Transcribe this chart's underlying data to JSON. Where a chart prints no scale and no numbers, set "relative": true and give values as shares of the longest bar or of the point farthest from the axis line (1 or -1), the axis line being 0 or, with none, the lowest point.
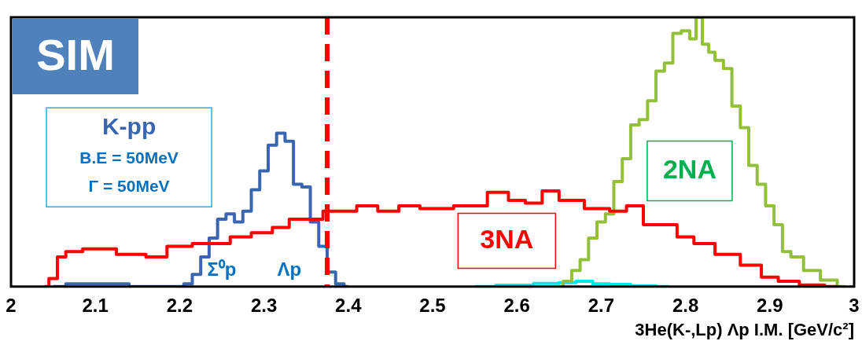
{
  "chart_data": {
    "type": "step",
    "relative": true,
    "xlabel": "3He(K-,Lp) Λp I.M. [GeV/c²]",
    "xlim": [
      2,
      3
    ],
    "xticks": [
      2,
      2.1,
      2.2,
      2.3,
      2.4,
      2.5,
      2.6,
      2.7,
      2.8,
      2.9,
      3
    ],
    "grid": false,
    "legend": false,
    "marker": "none",
    "annotations": [
      "SIM",
      "B.E = 50MeV",
      "Γ = 50MeV",
      "Σ⁰p",
      "Λp"
    ],
    "ref_lines": [
      {
        "axis": "x",
        "value": 2.375,
        "color": "#ff0000",
        "line_style": "dashed"
      }
    ],
    "series": [
      {
        "name": "3NA",
        "color": "#ff0000",
        "x": [
          2.04,
          2.05,
          2.06,
          2.07,
          2.1,
          2.15,
          2.17,
          2.2,
          2.23,
          2.25,
          2.27,
          2.3,
          2.32,
          2.34,
          2.36,
          2.38,
          2.4,
          2.42,
          2.45,
          2.47,
          2.5,
          2.55,
          2.58,
          2.6,
          2.62,
          2.64,
          2.66,
          2.7,
          2.72,
          2.74,
          2.76,
          2.78,
          2.8,
          2.82,
          2.85,
          2.88,
          2.9,
          2.92,
          2.95,
          2.98
        ],
        "values": [
          0,
          0.03,
          0.11,
          0.13,
          0.14,
          0.12,
          0.11,
          0.15,
          0.16,
          0.16,
          0.185,
          0.2,
          0.22,
          0.25,
          0.25,
          0.28,
          0.28,
          0.3,
          0.28,
          0.3,
          0.29,
          0.3,
          0.35,
          0.32,
          0.31,
          0.355,
          0.32,
          0.29,
          0.28,
          0.3,
          0.23,
          0.23,
          0.185,
          0.16,
          0.12,
          0.08,
          0.035,
          0.02,
          0.006,
          0
        ]
      },
      {
        "name": "K-pp",
        "color": "#3a66b0",
        "x": [
          2.05,
          2.08,
          2.12,
          2.16,
          2.2,
          2.21,
          2.22,
          2.23,
          2.24,
          2.25,
          2.26,
          2.27,
          2.28,
          2.29,
          2.3,
          2.31,
          2.32,
          2.33,
          2.34,
          2.35,
          2.36,
          2.37,
          2.38,
          2.39,
          2.4
        ],
        "values": [
          0,
          0.01,
          0.01,
          0,
          0,
          0.01,
          0.045,
          0.11,
          0.18,
          0.25,
          0.27,
          0.24,
          0.28,
          0.36,
          0.43,
          0.525,
          0.57,
          0.54,
          0.38,
          0.37,
          0.24,
          0.15,
          0.054,
          0.01,
          0
        ]
      },
      {
        "name": "2NA",
        "color": "#92c03c",
        "x": [
          2.65,
          2.66,
          2.67,
          2.68,
          2.69,
          2.7,
          2.71,
          2.72,
          2.73,
          2.74,
          2.75,
          2.76,
          2.77,
          2.78,
          2.79,
          2.8,
          2.81,
          2.815,
          2.825,
          2.83,
          2.84,
          2.85,
          2.86,
          2.87,
          2.88,
          2.89,
          2.9,
          2.91,
          2.92,
          2.93,
          2.95,
          2.97,
          2.99
        ],
        "values": [
          0,
          0.02,
          0.06,
          0.1,
          0.18,
          0.24,
          0.27,
          0.39,
          0.475,
          0.6,
          0.62,
          0.69,
          0.8,
          0.83,
          0.94,
          0.95,
          0.92,
          1,
          0.9,
          0.87,
          0.84,
          0.81,
          0.67,
          0.59,
          0.45,
          0.38,
          0.3,
          0.23,
          0.13,
          0.11,
          0.06,
          0.024,
          0
        ]
      },
      {
        "color": "#00e5ee",
        "x": [
          2.55,
          2.6,
          2.64,
          2.66,
          2.68,
          2.7,
          2.72,
          2.75,
          2.78
        ],
        "values": [
          0,
          0.005,
          0.012,
          0.015,
          0.02,
          0.01,
          0.008,
          0.003,
          0
        ]
      }
    ]
  }
}
